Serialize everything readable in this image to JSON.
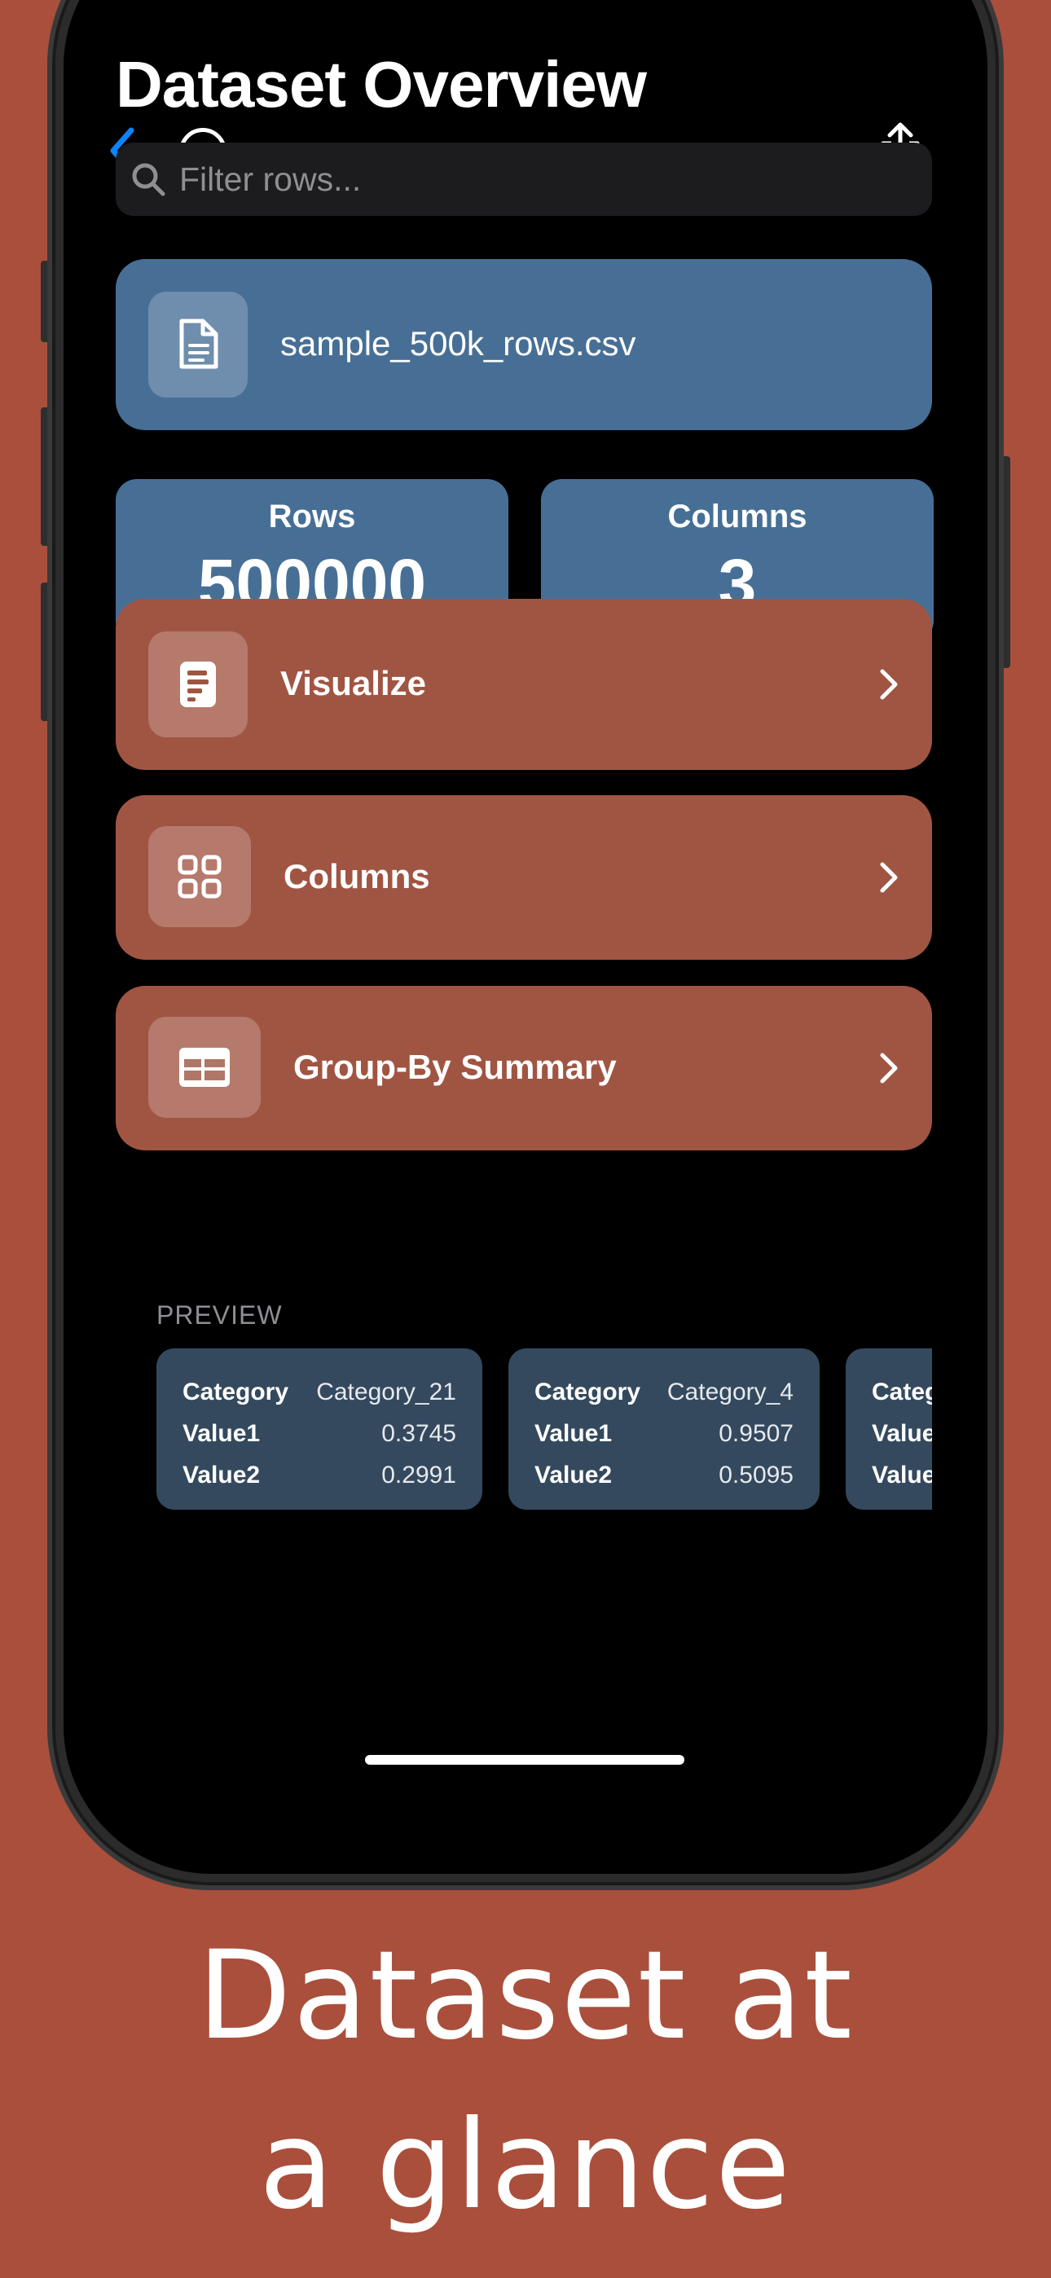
{
  "colors": {
    "background": "#A94F3C",
    "accent_blue": "#0A84FF",
    "stat_card": "#476F96",
    "action_card": "#A05543",
    "preview_card": "#34495E"
  },
  "nav": {
    "back_icon": "chevron-left-icon",
    "more_icon": "ellipsis-circle-icon",
    "share_icon": "share-icon"
  },
  "title": "Dataset Overview",
  "search": {
    "placeholder": "Filter rows..."
  },
  "file": {
    "name": "sample_500k_rows.csv",
    "icon": "document-icon"
  },
  "stats": [
    {
      "label": "Rows",
      "value": "500000"
    },
    {
      "label": "Columns",
      "value": "3"
    }
  ],
  "actions": [
    {
      "label": "Visualize",
      "icon": "chart-doc-icon"
    },
    {
      "label": "Columns",
      "icon": "grid-icon"
    },
    {
      "label": "Group-By Summary",
      "icon": "table-icon"
    }
  ],
  "preview": {
    "header": "PREVIEW",
    "rows": [
      {
        "Category": "Category_21",
        "Value1": "0.3745",
        "Value2": "0.2991"
      },
      {
        "Category": "Category_4",
        "Value1": "0.9507",
        "Value2": "0.5095"
      },
      {
        "Category": "",
        "Value1": "",
        "Value2": ""
      }
    ],
    "keys": [
      "Category",
      "Value1",
      "Value2"
    ]
  },
  "caption": {
    "line1": "Dataset at",
    "line2": "a glance"
  }
}
